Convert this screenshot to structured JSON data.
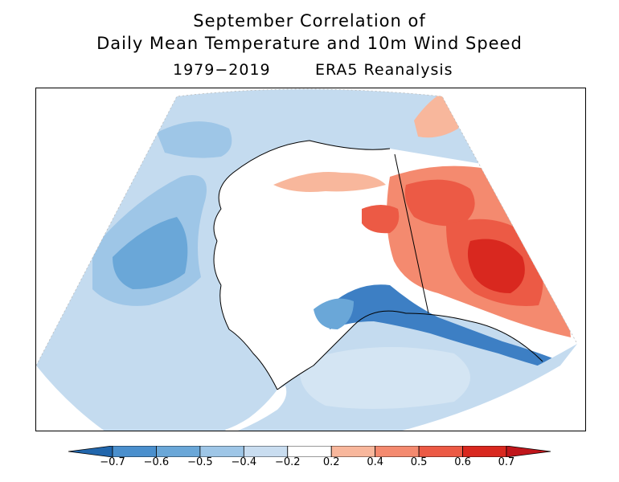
{
  "title": {
    "line1": "September Correlation of",
    "line2": "Daily Mean Temperature and 10m Wind Speed",
    "period": "1979−2019",
    "source": "ERA5 Reanalysis"
  },
  "colorbar": {
    "labels": [
      "−0.7",
      "−0.6",
      "−0.5",
      "−0.4",
      "−0.2",
      "0.2",
      "0.4",
      "0.5",
      "0.6",
      "0.7"
    ],
    "colors": [
      "#2166ac",
      "#4a8fcd",
      "#6aa7d8",
      "#9ec6e7",
      "#c9ddf0",
      "#ffffff",
      "#f8b79c",
      "#f48a6f",
      "#ec5a45",
      "#d9281f",
      "#c0161b"
    ]
  },
  "map": {
    "region": "Alaska",
    "palette": {
      "ocean_light": "#c4dbef",
      "ocean_mid": "#9ec6e7",
      "ocean_dark": "#6aa7d8",
      "land_neutral": "#ffffff",
      "warm_light": "#f8b79c",
      "warm_mid": "#f06a50",
      "warm_dark": "#d9281f",
      "cold_dark": "#3d7fc4"
    }
  }
}
